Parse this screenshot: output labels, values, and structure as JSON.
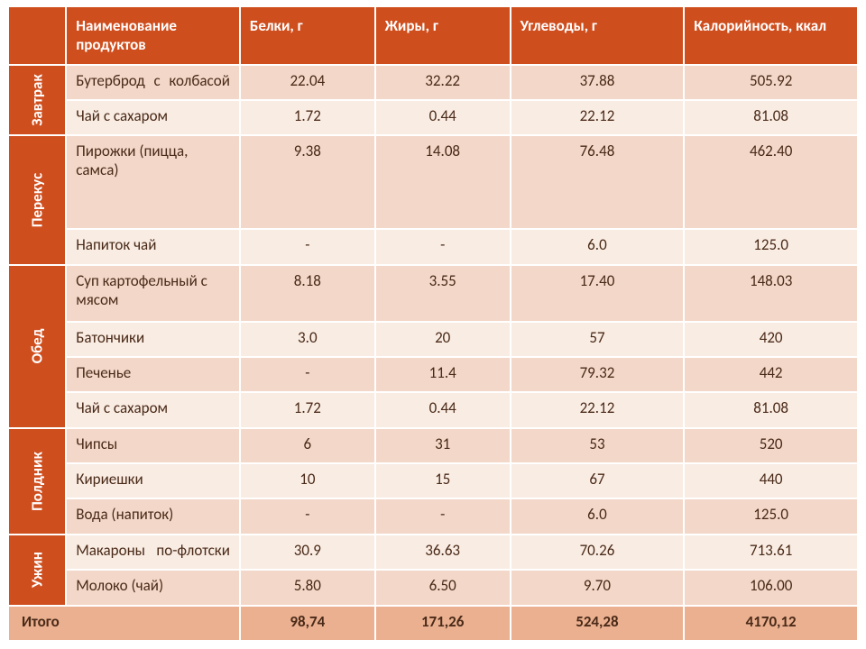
{
  "colors": {
    "header_bg": "#cf4e1e",
    "header_fg": "#ffffff",
    "band_a": "#f3d7c8",
    "band_b": "#f9ece3",
    "total_bg": "#eab090",
    "text": "#4a2a18",
    "border": "#ffffff"
  },
  "fontsize": {
    "cell": 17,
    "header": 17
  },
  "columns": [
    "",
    "Наименование продуктов",
    "Белки, г",
    "Жиры, г",
    "Углеводы, г",
    "Калорийность, ккал"
  ],
  "meals": [
    {
      "label": "Завтрак",
      "rows": [
        {
          "name": "Бутерброд с колбасой",
          "justify": true,
          "protein": "22.04",
          "fat": "32.22",
          "carbs": "37.88",
          "kcal": "505.92",
          "band": "a"
        },
        {
          "name": "Чай с сахаром",
          "protein": "1.72",
          "fat": "0.44",
          "carbs": "22.12",
          "kcal": "81.08",
          "band": "b"
        }
      ]
    },
    {
      "label": "Перекус",
      "rows": [
        {
          "name": "Пирожки (пицца, самса)",
          "protein": "9.38",
          "fat": "14.08",
          "carbs": "76.48",
          "kcal": "462.40",
          "band": "a",
          "tall": true
        },
        {
          "name": "Напиток чай",
          "protein": "-",
          "fat": "-",
          "carbs": "6.0",
          "kcal": "125.0",
          "band": "b"
        }
      ]
    },
    {
      "label": "Обед",
      "rows": [
        {
          "name": "Суп картофельный с мясом",
          "justify": true,
          "protein": "8.18",
          "fat": "3.55",
          "carbs": "17.40",
          "kcal": "148.03",
          "band": "a"
        },
        {
          "name": "Батончики",
          "protein": "3.0",
          "fat": "20",
          "carbs": "57",
          "kcal": "420",
          "band": "b"
        },
        {
          "name": "Печенье",
          "protein": "-",
          "fat": "11.4",
          "carbs": "79.32",
          "kcal": "442",
          "band": "a"
        },
        {
          "name": "Чай с сахаром",
          "protein": "1.72",
          "fat": "0.44",
          "carbs": "22.12",
          "kcal": "81.08",
          "band": "b"
        }
      ]
    },
    {
      "label": "Полдник",
      "rows": [
        {
          "name": "Чипсы",
          "protein": "6",
          "fat": "31",
          "carbs": "53",
          "kcal": "520",
          "band": "a"
        },
        {
          "name": "Кириешки",
          "protein": "10",
          "fat": "15",
          "carbs": "67",
          "kcal": "440",
          "band": "b"
        },
        {
          "name": "Вода (напиток)",
          "protein": "-",
          "fat": "-",
          "carbs": "6.0",
          "kcal": "125.0",
          "band": "a"
        }
      ]
    },
    {
      "label": "Ужин",
      "rows": [
        {
          "name": "Макароны по-флотски",
          "justify": true,
          "protein": "30.9",
          "fat": "36.63",
          "carbs": "70.26",
          "kcal": "713.61",
          "band": "b"
        },
        {
          "name": "Молоко (чай)",
          "protein": "5.80",
          "fat": "6.50",
          "carbs": "9.70",
          "kcal": "106.00",
          "band": "a"
        }
      ]
    }
  ],
  "total": {
    "label": "Итого",
    "protein": "98,74",
    "fat": "171,26",
    "carbs": "524,28",
    "kcal": "4170,12"
  }
}
